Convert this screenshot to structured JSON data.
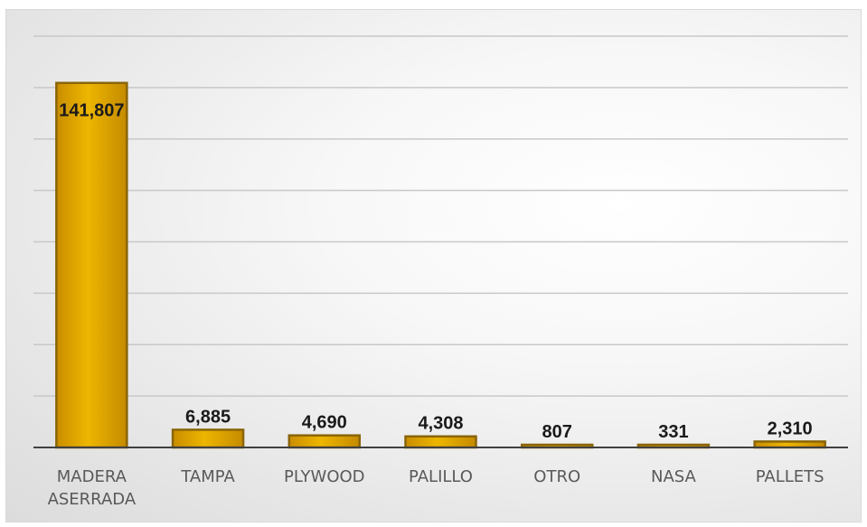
{
  "chart_data": {
    "type": "bar",
    "categories": [
      [
        "MADERA",
        "ASERRADA"
      ],
      [
        "TAMPA"
      ],
      [
        "PLYWOOD"
      ],
      [
        "PALILLO"
      ],
      [
        "OTRO"
      ],
      [
        "NASA"
      ],
      [
        "PALLETS"
      ]
    ],
    "values": [
      141807,
      6885,
      4690,
      4308,
      807,
      331,
      2310
    ],
    "data_labels": [
      "141,807",
      "6,885",
      "4,690",
      "4,308",
      "807",
      "331",
      "2,310"
    ],
    "title": "",
    "xlabel": "",
    "ylabel": "",
    "ylim": [
      0,
      160000
    ],
    "grid": true,
    "bar_color": "#e0a800",
    "bar_edge_color": "#8a6508",
    "grid_color": "#c8c8c8",
    "axis_color": "#404040"
  }
}
